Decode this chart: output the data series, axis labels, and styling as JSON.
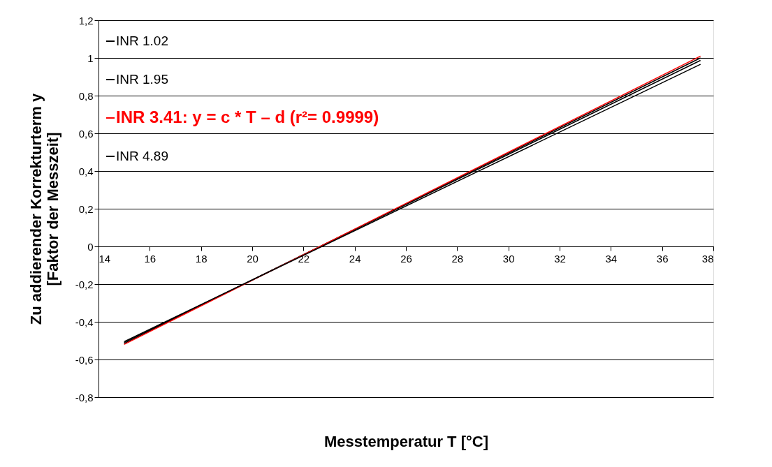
{
  "chart_data": {
    "type": "line",
    "xlabel": "Messtemperatur T [°C]",
    "ylabel": "Zu addierender Korrekturterm y [Faktor der Messzeit]",
    "xlim": [
      14,
      38
    ],
    "xticks": [
      14,
      16,
      18,
      20,
      22,
      24,
      26,
      28,
      30,
      32,
      34,
      36,
      38
    ],
    "ylim": [
      -0.8,
      1.2
    ],
    "yticks": [
      {
        "value": -0.8,
        "label": "-0,8"
      },
      {
        "value": -0.6,
        "label": "-0,6"
      },
      {
        "value": -0.4,
        "label": "-0,4"
      },
      {
        "value": -0.2,
        "label": "-0,2"
      },
      {
        "value": 0,
        "label": "0"
      },
      {
        "value": 0.2,
        "label": "0,2"
      },
      {
        "value": 0.4,
        "label": "0,4"
      },
      {
        "value": 0.6,
        "label": "0,6"
      },
      {
        "value": 0.8,
        "label": "0,8"
      },
      {
        "value": 1,
        "label": "1"
      },
      {
        "value": 1.2,
        "label": "1,2"
      }
    ],
    "grid": "y",
    "legend": "top left",
    "marker": "none",
    "line_style": "solid",
    "x": [
      15,
      37.5
    ],
    "series": [
      {
        "name": "INR 1.02",
        "color": "#000000",
        "values": [
          -0.515,
          1.0
        ]
      },
      {
        "name": "INR 1.95",
        "color": "#000000",
        "values": [
          -0.51,
          0.987
        ]
      },
      {
        "name": "INR 3.41: y = c * T – d (r²= 0.9999)",
        "color": "#ff0000",
        "values": [
          -0.52,
          1.01
        ]
      },
      {
        "name": "INR 4.89",
        "color": "#000000",
        "values": [
          -0.505,
          0.966
        ]
      }
    ]
  }
}
